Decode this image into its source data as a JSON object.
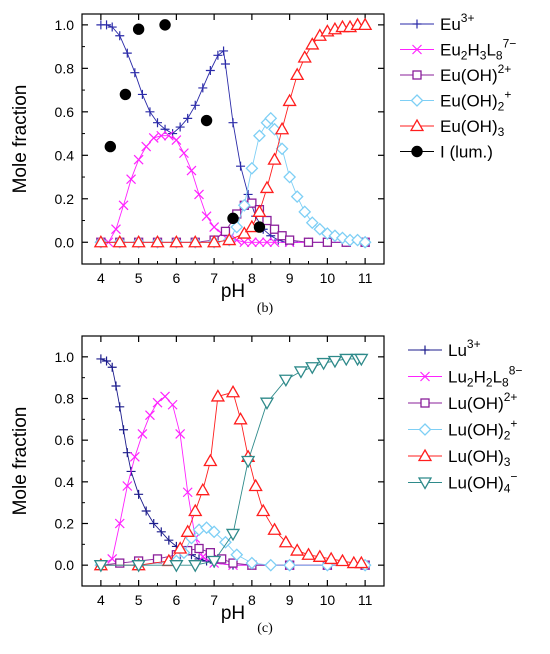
{
  "colors": {
    "eu3": "#2a2aa8",
    "lu3": "#1c1c8c",
    "complex": "#ff22ff",
    "oh1": "#8a1f9a",
    "oh2": "#7ecff5",
    "oh3": "#ff1e1e",
    "oh4": "#2e8a8a",
    "lum": "#000000"
  },
  "chart_data": [
    {
      "type": "line",
      "panel_label": "(b)",
      "xlabel": "pH",
      "ylabel": "Mole fraction",
      "xlim": [
        3.5,
        11.5
      ],
      "ylim": [
        -0.1,
        1.05
      ],
      "xticks": [
        "4",
        "5",
        "6",
        "7",
        "8",
        "9",
        "10",
        "11"
      ],
      "yticks": [
        "0.0",
        "0.2",
        "0.4",
        "0.6",
        "0.8",
        "1.0"
      ],
      "legend_position": "right",
      "series": [
        {
          "name": "Eu3+",
          "label": {
            "main": "Eu",
            "sup": "3+"
          },
          "color_key": "eu3",
          "marker": "plus",
          "x": [
            4.0,
            4.15,
            4.3,
            4.5,
            4.7,
            4.9,
            5.1,
            5.3,
            5.5,
            5.7,
            5.9,
            6.1,
            6.3,
            6.5,
            6.7,
            6.9,
            7.1,
            7.25,
            7.3,
            7.5,
            7.7,
            7.9,
            8.1,
            8.3,
            8.5,
            8.7,
            8.9,
            9.1,
            9.5,
            10.0,
            10.5,
            11.0
          ],
          "y": [
            1.0,
            1.0,
            0.99,
            0.95,
            0.87,
            0.78,
            0.68,
            0.6,
            0.55,
            0.52,
            0.5,
            0.53,
            0.57,
            0.63,
            0.71,
            0.79,
            0.86,
            0.88,
            0.82,
            0.55,
            0.35,
            0.22,
            0.12,
            0.06,
            0.03,
            0.01,
            0.0,
            0.0,
            0.0,
            0.0,
            0.0,
            0.0
          ]
        },
        {
          "name": "Eu2H3L8 7-",
          "label": {
            "main": "Eu",
            "sub1": "2",
            "mid1": "H",
            "sub2": "3",
            "mid2": "L",
            "sub3": "8",
            "sup": "7−"
          },
          "color_key": "complex",
          "marker": "cross",
          "x": [
            4.0,
            4.2,
            4.4,
            4.6,
            4.8,
            5.0,
            5.2,
            5.4,
            5.6,
            5.8,
            6.0,
            6.2,
            6.4,
            6.6,
            6.8,
            7.0,
            7.2,
            7.4,
            7.6,
            7.8,
            8.0,
            8.2,
            8.4,
            8.6,
            9.0,
            9.5,
            10.0,
            10.5,
            11.0
          ],
          "y": [
            0.0,
            0.0,
            0.06,
            0.17,
            0.29,
            0.38,
            0.44,
            0.48,
            0.49,
            0.49,
            0.47,
            0.41,
            0.33,
            0.22,
            0.12,
            0.07,
            0.04,
            0.02,
            0.01,
            0.0,
            0.0,
            0.0,
            0.0,
            0.0,
            0.0,
            0.0,
            0.0,
            0.0,
            0.0
          ]
        },
        {
          "name": "Eu(OH)2+",
          "label": {
            "main": "Eu(OH)",
            "sup": "2+"
          },
          "color_key": "oh1",
          "marker": "square",
          "x": [
            4.0,
            4.5,
            5.0,
            5.5,
            6.0,
            6.5,
            7.0,
            7.3,
            7.6,
            7.8,
            8.0,
            8.2,
            8.4,
            8.6,
            8.8,
            9.0,
            9.5,
            10.0,
            10.5,
            11.0
          ],
          "y": [
            0.0,
            0.0,
            0.0,
            0.0,
            0.0,
            0.0,
            0.01,
            0.05,
            0.13,
            0.17,
            0.18,
            0.15,
            0.1,
            0.06,
            0.03,
            0.01,
            0.0,
            0.0,
            0.0,
            0.0
          ]
        },
        {
          "name": "Eu(OH)2 +",
          "label": {
            "main": "Eu(OH)",
            "sub1": "2",
            "sup": "+"
          },
          "color_key": "oh2",
          "marker": "diamond",
          "x": [
            4.0,
            4.5,
            5.0,
            5.5,
            6.0,
            6.5,
            7.0,
            7.4,
            7.6,
            7.8,
            8.0,
            8.2,
            8.4,
            8.5,
            8.6,
            8.8,
            9.0,
            9.2,
            9.4,
            9.6,
            9.8,
            10.0,
            10.2,
            10.4,
            10.6,
            10.8,
            11.0
          ],
          "y": [
            0.0,
            0.0,
            0.0,
            0.0,
            0.0,
            0.0,
            0.0,
            0.01,
            0.07,
            0.17,
            0.34,
            0.49,
            0.55,
            0.57,
            0.52,
            0.43,
            0.3,
            0.21,
            0.14,
            0.09,
            0.06,
            0.04,
            0.03,
            0.02,
            0.01,
            0.01,
            0.0
          ]
        },
        {
          "name": "Eu(OH)3",
          "label": {
            "main": "Eu(OH)",
            "sub1": "3"
          },
          "color_key": "oh3",
          "marker": "triangle-up",
          "x": [
            4.0,
            4.5,
            5.0,
            5.5,
            6.0,
            6.5,
            7.0,
            7.4,
            7.8,
            8.0,
            8.2,
            8.4,
            8.6,
            8.8,
            9.0,
            9.2,
            9.4,
            9.6,
            9.8,
            10.0,
            10.2,
            10.4,
            10.6,
            10.8,
            11.0
          ],
          "y": [
            0.0,
            0.0,
            0.0,
            0.0,
            0.0,
            0.0,
            0.0,
            0.01,
            0.04,
            0.07,
            0.14,
            0.25,
            0.38,
            0.52,
            0.65,
            0.77,
            0.85,
            0.91,
            0.95,
            0.97,
            0.98,
            0.99,
            0.99,
            1.0,
            1.0
          ]
        },
        {
          "name": "I (lum.)",
          "label": {
            "main": "I (lum.)"
          },
          "color_key": "lum",
          "marker": "dot",
          "no_line": true,
          "x": [
            4.25,
            4.65,
            5.0,
            5.7,
            6.8,
            7.5,
            8.2
          ],
          "y": [
            0.44,
            0.68,
            0.98,
            1.0,
            0.56,
            0.11,
            0.07
          ]
        }
      ]
    },
    {
      "type": "line",
      "panel_label": "(c)",
      "xlabel": "pH",
      "ylabel": "Mole fraction",
      "xlim": [
        3.5,
        11.5
      ],
      "ylim": [
        -0.1,
        1.1
      ],
      "xticks": [
        "4",
        "5",
        "6",
        "7",
        "8",
        "9",
        "10",
        "11"
      ],
      "yticks": [
        "0.0",
        "0.2",
        "0.4",
        "0.6",
        "0.8",
        "1.0"
      ],
      "legend_position": "right",
      "series": [
        {
          "name": "Lu3+",
          "label": {
            "main": "Lu",
            "sup": "3+"
          },
          "color_key": "lu3",
          "marker": "plus",
          "x": [
            4.0,
            4.15,
            4.3,
            4.4,
            4.5,
            4.6,
            4.7,
            4.8,
            5.0,
            5.2,
            5.4,
            5.6,
            5.8,
            6.0,
            6.2,
            6.4,
            6.6,
            6.8,
            7.0,
            7.5,
            8.0,
            9.0,
            10.0,
            11.0
          ],
          "y": [
            0.99,
            0.98,
            0.95,
            0.86,
            0.76,
            0.65,
            0.54,
            0.45,
            0.34,
            0.26,
            0.2,
            0.16,
            0.12,
            0.09,
            0.07,
            0.05,
            0.03,
            0.02,
            0.01,
            0.0,
            0.0,
            0.0,
            0.0,
            0.0
          ]
        },
        {
          "name": "Lu2H2L8 8-",
          "label": {
            "main": "Lu",
            "sub1": "2",
            "mid1": "H",
            "sub2": "2",
            "mid2": "L",
            "sub3": "8",
            "sup": "8−"
          },
          "color_key": "complex",
          "marker": "cross",
          "x": [
            4.0,
            4.3,
            4.5,
            4.7,
            4.9,
            5.1,
            5.3,
            5.5,
            5.7,
            5.9,
            6.1,
            6.3,
            6.5,
            6.7,
            7.0,
            7.5,
            8.0,
            9.0,
            10.0,
            11.0
          ],
          "y": [
            0.0,
            0.03,
            0.2,
            0.38,
            0.52,
            0.63,
            0.72,
            0.78,
            0.81,
            0.77,
            0.63,
            0.35,
            0.13,
            0.04,
            0.01,
            0.0,
            0.0,
            0.0,
            0.0,
            0.0
          ]
        },
        {
          "name": "Lu(OH)2+",
          "label": {
            "main": "Lu(OH)",
            "sup": "2+"
          },
          "color_key": "oh1",
          "marker": "square",
          "x": [
            4.0,
            4.5,
            5.0,
            5.5,
            6.0,
            6.3,
            6.6,
            6.9,
            7.2,
            7.5,
            8.0,
            9.0,
            10.0,
            11.0
          ],
          "y": [
            0.0,
            0.01,
            0.02,
            0.03,
            0.05,
            0.07,
            0.08,
            0.06,
            0.03,
            0.01,
            0.0,
            0.0,
            0.0,
            0.0
          ]
        },
        {
          "name": "Lu(OH)2 +",
          "label": {
            "main": "Lu(OH)",
            "sub1": "2",
            "sup": "+"
          },
          "color_key": "oh2",
          "marker": "diamond",
          "x": [
            4.0,
            5.0,
            6.0,
            6.2,
            6.4,
            6.6,
            6.8,
            7.0,
            7.3,
            7.6,
            8.0,
            8.5,
            9.0,
            10.0,
            11.0
          ],
          "y": [
            0.0,
            0.0,
            0.02,
            0.06,
            0.13,
            0.17,
            0.18,
            0.16,
            0.11,
            0.05,
            0.01,
            0.0,
            0.0,
            0.0,
            0.0
          ]
        },
        {
          "name": "Lu(OH)3",
          "label": {
            "main": "Lu(OH)",
            "sub1": "3"
          },
          "color_key": "oh3",
          "marker": "triangle-up",
          "x": [
            4.0,
            5.0,
            5.8,
            6.1,
            6.3,
            6.5,
            6.7,
            6.9,
            7.1,
            7.5,
            7.7,
            7.9,
            8.1,
            8.3,
            8.6,
            8.9,
            9.2,
            9.5,
            9.8,
            10.1,
            10.4,
            10.7,
            10.9
          ],
          "y": [
            0.0,
            0.0,
            0.02,
            0.08,
            0.16,
            0.26,
            0.36,
            0.5,
            0.81,
            0.83,
            0.7,
            0.52,
            0.38,
            0.26,
            0.17,
            0.11,
            0.07,
            0.05,
            0.04,
            0.03,
            0.02,
            0.01,
            0.01
          ]
        },
        {
          "name": "Lu(OH)4 -",
          "label": {
            "main": "Lu(OH)",
            "sub1": "4",
            "sup": "−"
          },
          "color_key": "oh4",
          "marker": "triangle-down",
          "x": [
            4.0,
            5.0,
            6.0,
            6.5,
            7.0,
            7.5,
            7.9,
            8.4,
            8.9,
            9.3,
            9.6,
            9.9,
            10.2,
            10.5,
            10.8,
            10.9
          ],
          "y": [
            0.0,
            0.0,
            0.0,
            0.0,
            0.02,
            0.15,
            0.5,
            0.78,
            0.89,
            0.93,
            0.95,
            0.97,
            0.98,
            0.99,
            0.99,
            0.99
          ]
        }
      ]
    }
  ]
}
